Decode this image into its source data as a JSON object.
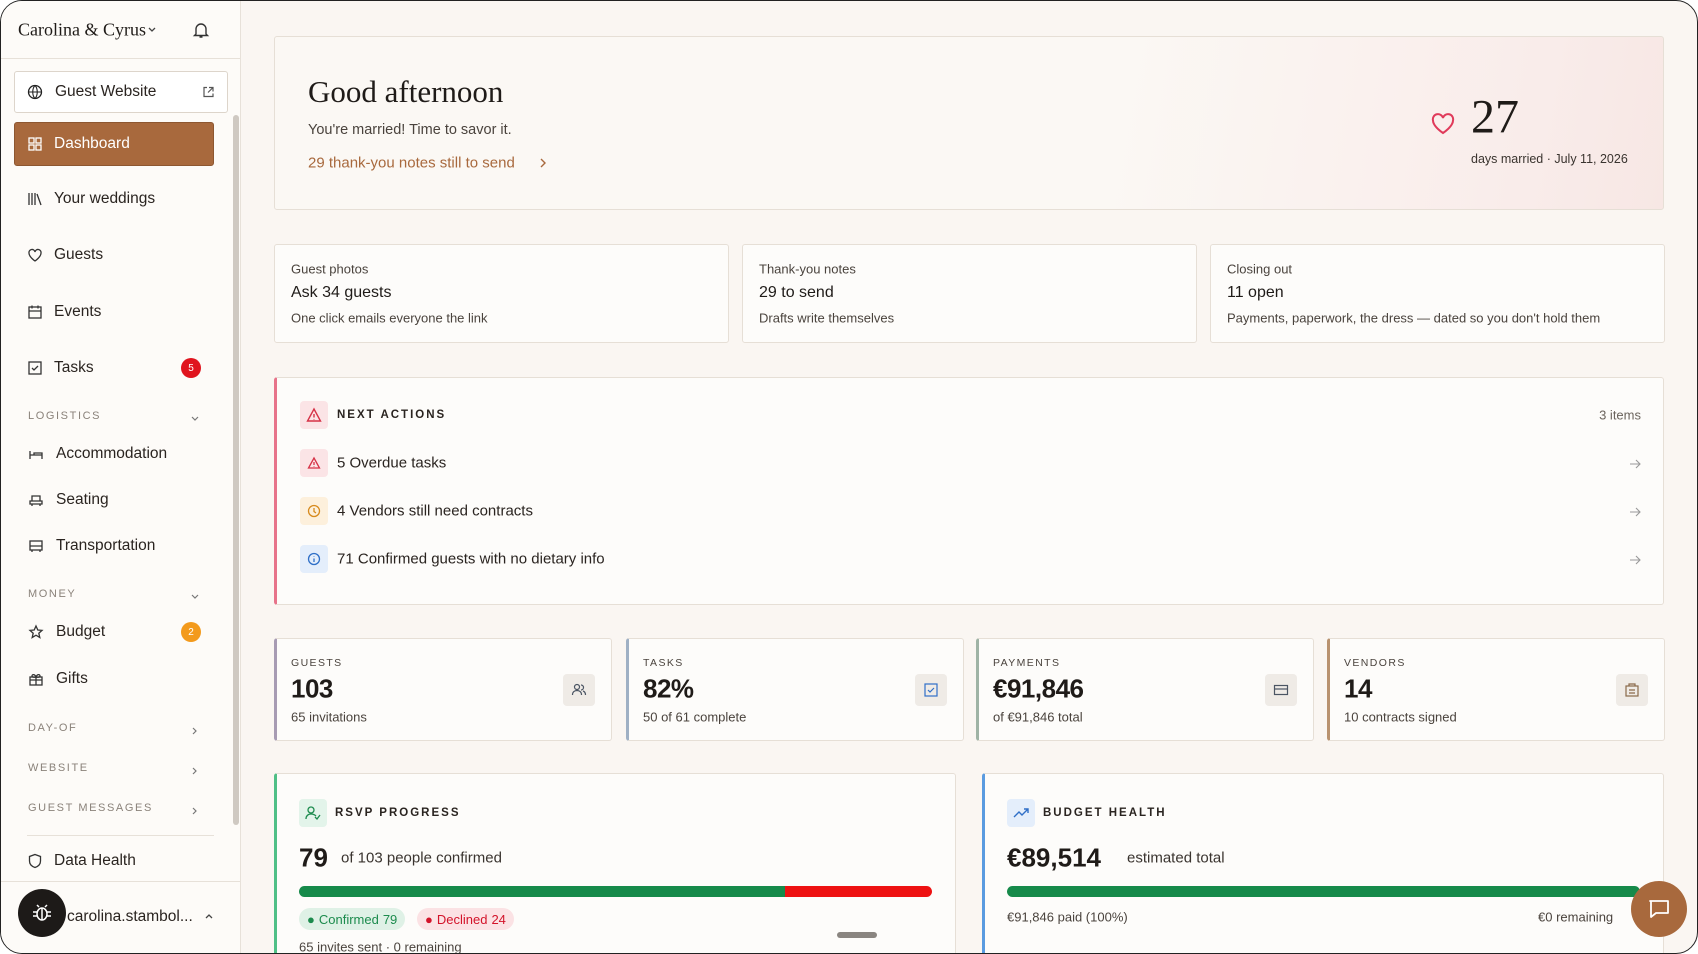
{
  "sidebar": {
    "workspace": "Carolina & Cyrus",
    "guest_website": "Guest Website",
    "nav": [
      {
        "label": "Dashboard"
      },
      {
        "label": "Your weddings"
      },
      {
        "label": "Guests"
      },
      {
        "label": "Events"
      },
      {
        "label": "Tasks",
        "badge": 5
      }
    ],
    "sections": [
      {
        "title": "LOGISTICS",
        "items": [
          {
            "label": "Accommodation"
          },
          {
            "label": "Seating"
          },
          {
            "label": "Transportation"
          }
        ]
      },
      {
        "title": "MONEY",
        "items": [
          {
            "label": "Budget",
            "badge": 2
          },
          {
            "label": "Gifts"
          }
        ]
      },
      {
        "title": "DAY-OF"
      },
      {
        "title": "WEBSITE"
      },
      {
        "title": "GUEST MESSAGES"
      }
    ],
    "data_health": "Data Health",
    "user": "carolina.stambol..."
  },
  "greeting": {
    "title": "Good afternoon",
    "subtitle": "You're married! Time to savor it.",
    "link": "29 thank-you notes still to send",
    "days": 27,
    "days_caption": "days married · July 11, 2026"
  },
  "summary_cards": [
    {
      "label": "Guest photos",
      "title": "Ask 34 guests",
      "subtitle": "One click emails everyone the link"
    },
    {
      "label": "Thank-you notes",
      "title": "29 to send",
      "subtitle": "Drafts write themselves"
    },
    {
      "label": "Closing out",
      "title": "11 open",
      "subtitle": "Payments, paperwork, the dress — dated so you don't hold them"
    }
  ],
  "next_actions": {
    "title": "NEXT ACTIONS",
    "count": "3 items",
    "items": [
      {
        "count": 5,
        "text": "Overdue tasks"
      },
      {
        "count": 4,
        "text": "Vendors still need contracts"
      },
      {
        "count": 71,
        "text": "Confirmed guests with no dietary info"
      }
    ]
  },
  "stats": [
    {
      "label": "GUESTS",
      "value": "103",
      "subtitle": "65 invitations"
    },
    {
      "label": "TASKS",
      "value": "82%",
      "subtitle": "50 of 61 complete"
    },
    {
      "label": "PAYMENTS",
      "value": "€91,846",
      "subtitle": "of €91,846 total"
    },
    {
      "label": "VENDORS",
      "value": "14",
      "subtitle": "10 contracts signed"
    }
  ],
  "rsvp": {
    "title": "RSVP PROGRESS",
    "confirmed": 79,
    "caption": "of 103 people confirmed",
    "confirmed_label": "Confirmed",
    "declined_label": "Declined",
    "declined": 24,
    "footnote": "65 invites sent · 0 remaining"
  },
  "budget": {
    "title": "BUDGET HEALTH",
    "total": "€89,514",
    "caption": "estimated total",
    "paid": "€91,846 paid (100%)",
    "remaining": "€0 remaining"
  }
}
